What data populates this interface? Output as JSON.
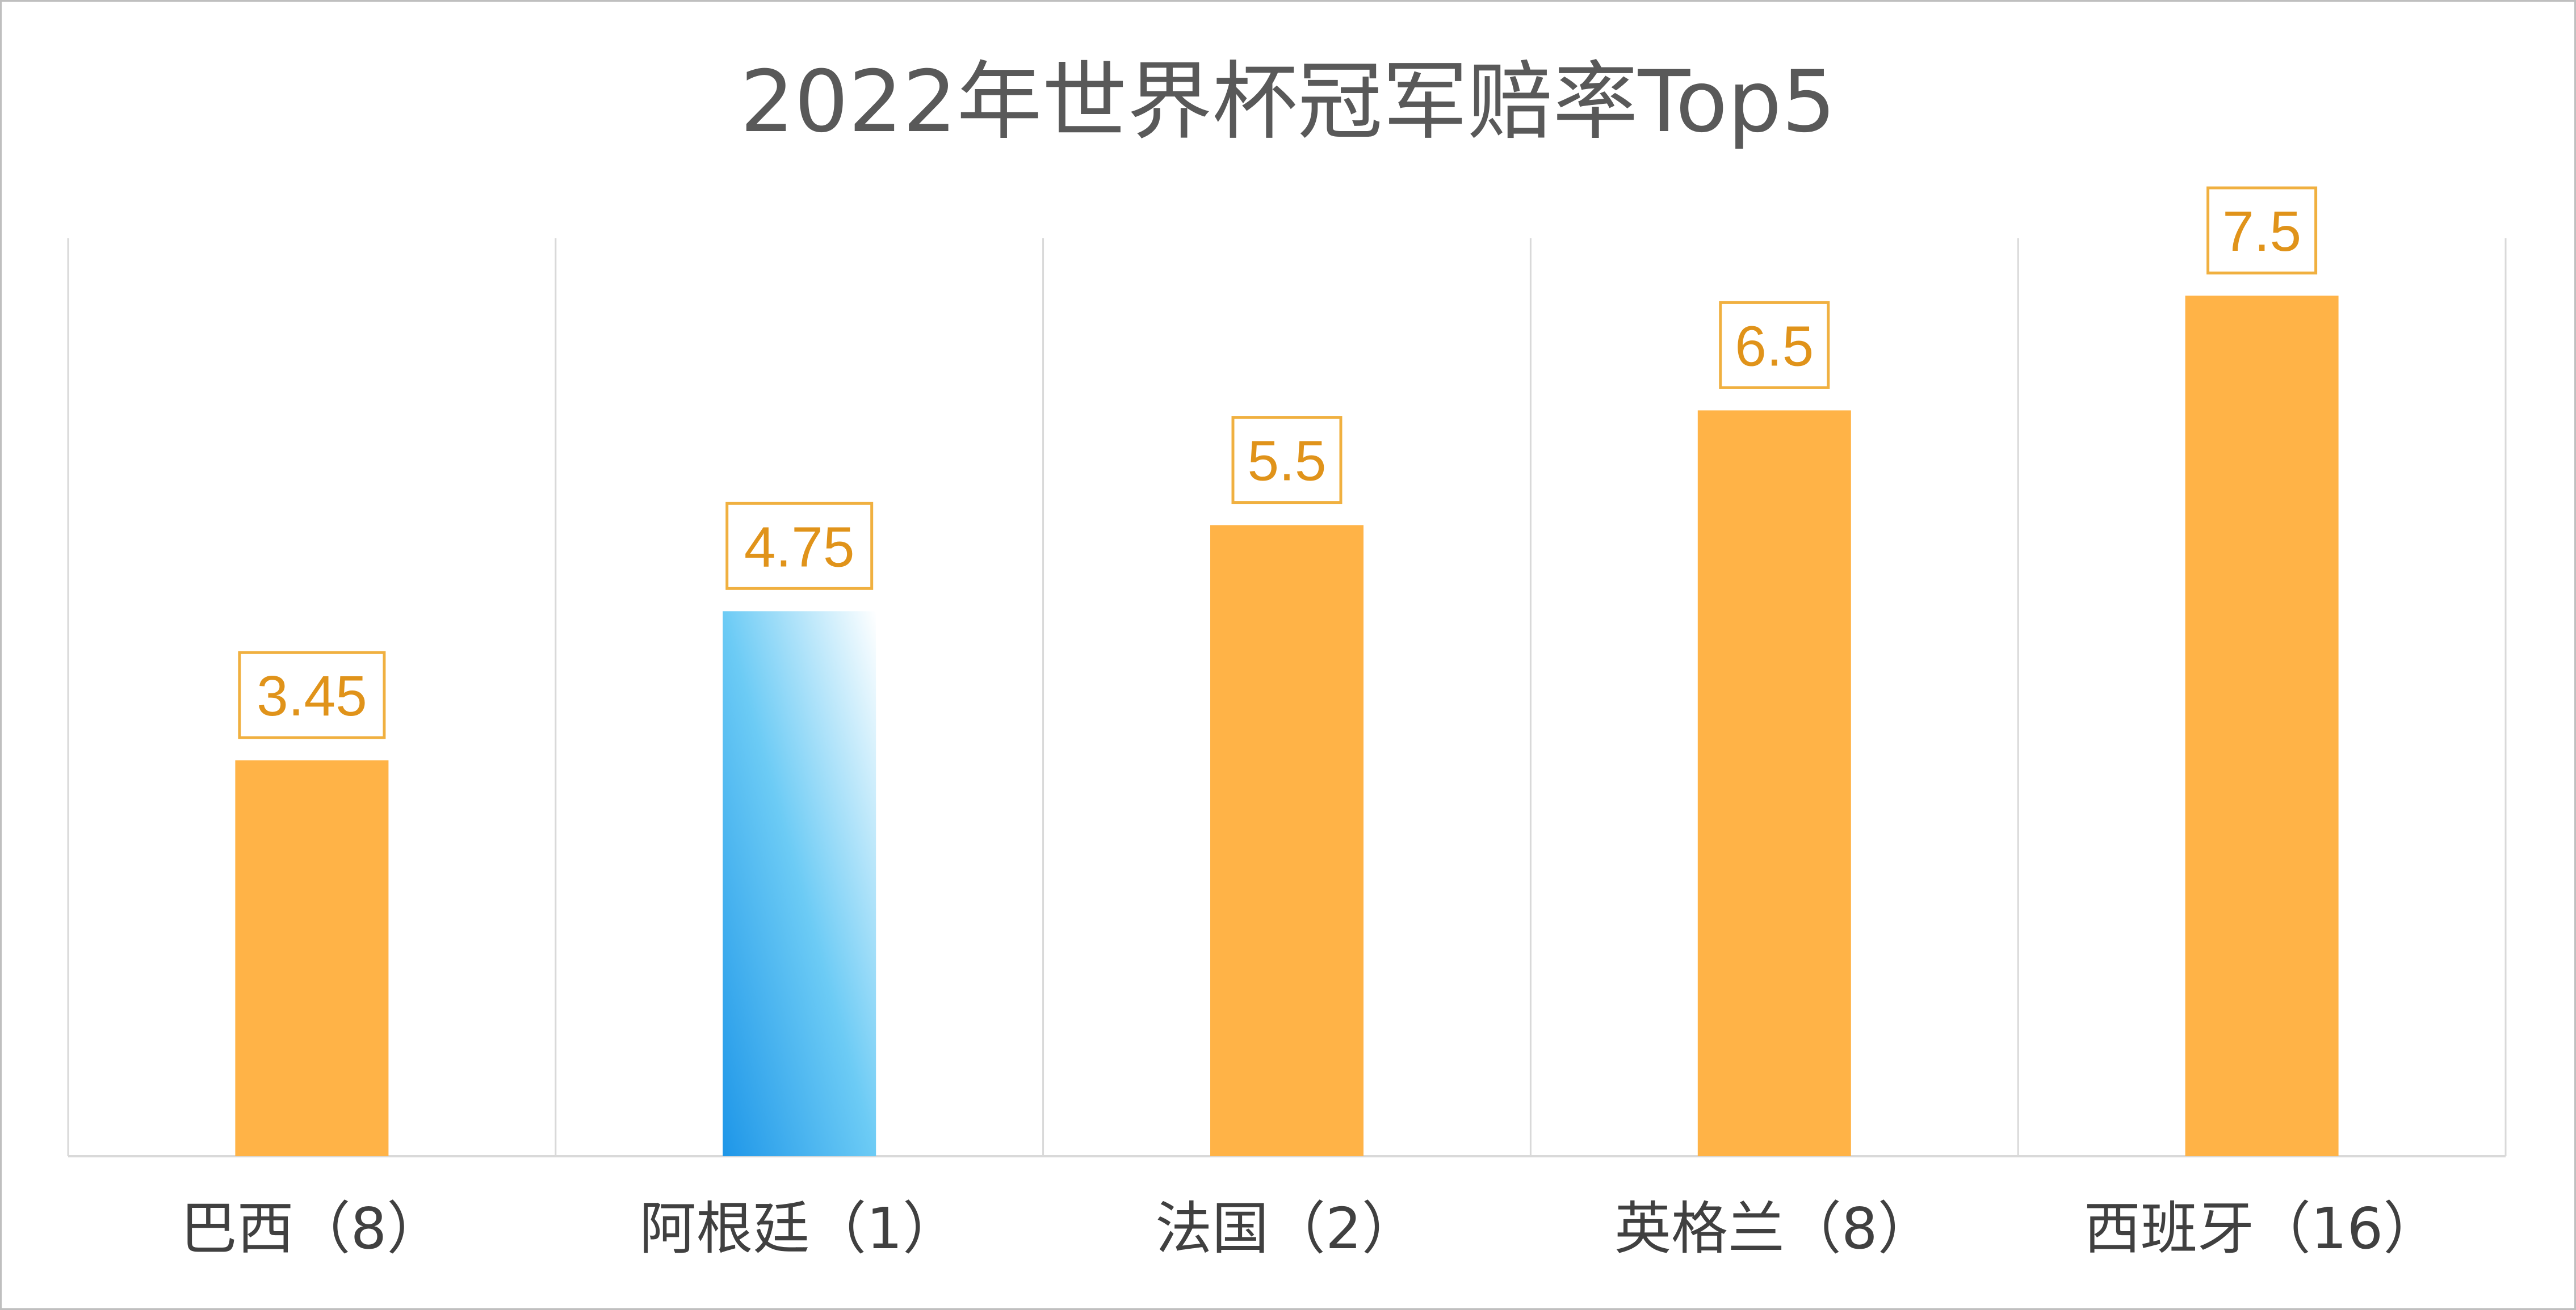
{
  "chart_data": {
    "type": "bar",
    "title": "2022年世界杯冠军赔率Top5",
    "categories": [
      "巴西（8）",
      "阿根廷（1）",
      "法国（2）",
      "英格兰（8）",
      "西班牙（16）"
    ],
    "values": [
      3.45,
      4.75,
      5.5,
      6.5,
      7.5
    ],
    "data_labels": [
      "3.45",
      "4.75",
      "5.5",
      "6.5",
      "7.5"
    ],
    "highlight_index": 1,
    "ylim": [
      0,
      8
    ],
    "xlabel": "",
    "ylabel": "",
    "grid": "vertical",
    "legend": "none",
    "colors": {
      "bar": "#ffb347",
      "highlight_start": "#1e96e8",
      "highlight_end": "#ffffff",
      "label_border": "#f0b040",
      "label_text": "#e0931a",
      "grid": "#d9d9d9",
      "axis": "#d9d9d9",
      "title": "#595959",
      "category_text": "#404040"
    }
  }
}
